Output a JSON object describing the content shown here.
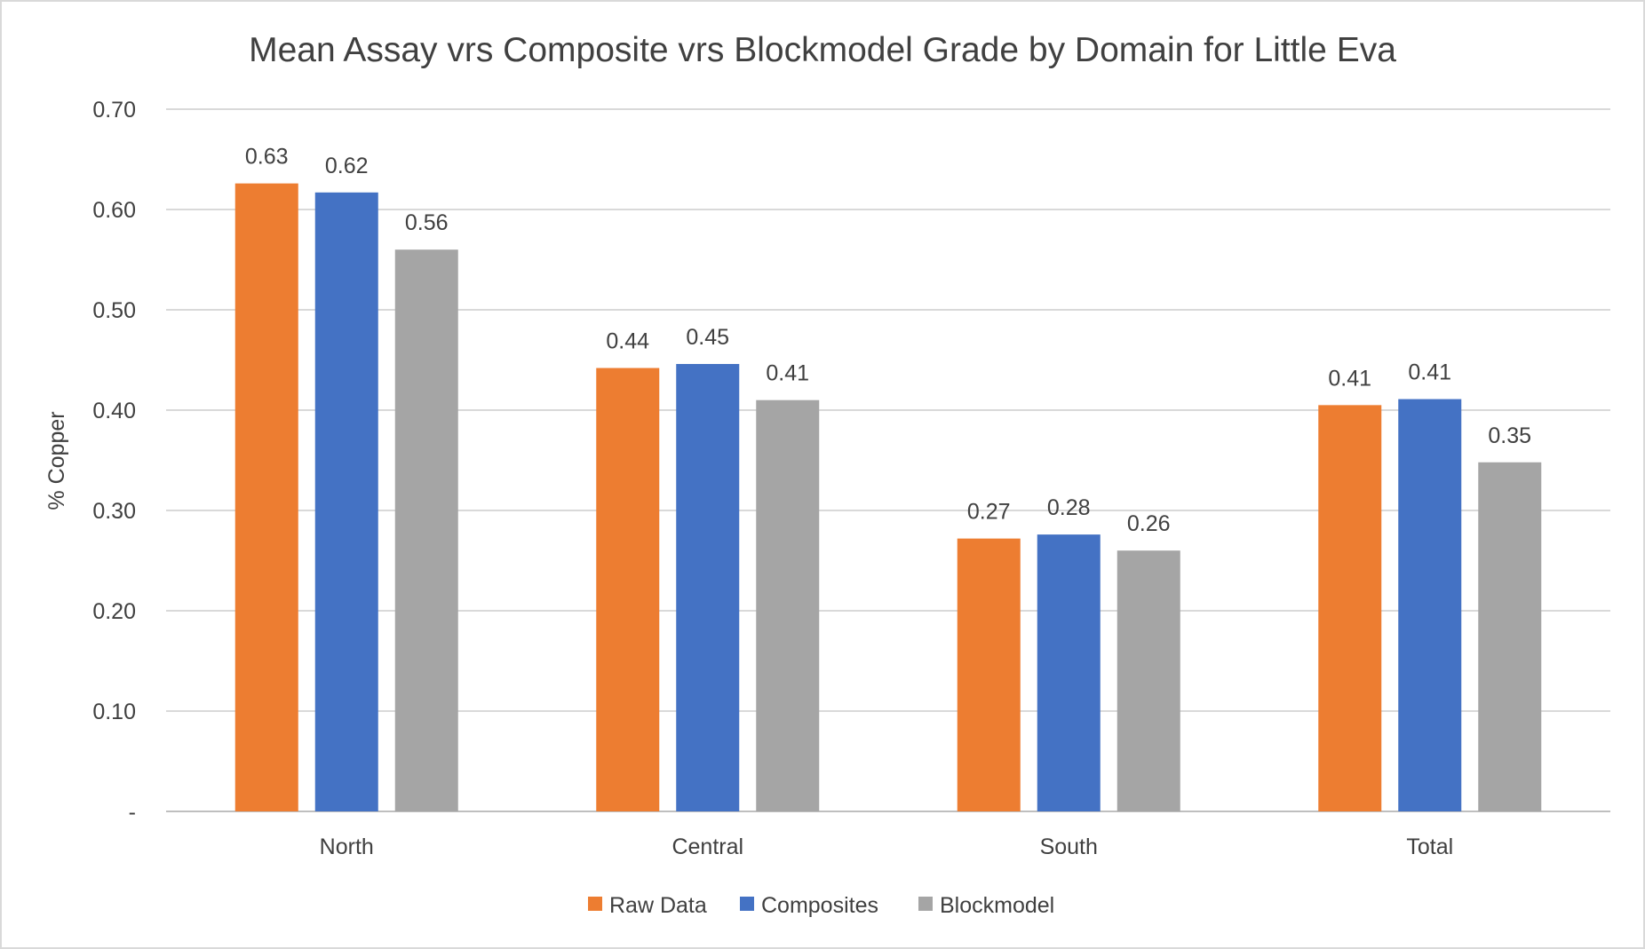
{
  "chart_data": {
    "type": "bar",
    "title": "Mean Assay vrs Composite vrs Blockmodel Grade by Domain for Little Eva",
    "xlabel": "",
    "ylabel": "% Copper",
    "ylim": [
      0,
      0.7
    ],
    "yticks": [
      0,
      0.1,
      0.2,
      0.3,
      0.4,
      0.5,
      0.6,
      0.7
    ],
    "ytick_labels": [
      "-",
      "0.10",
      "0.20",
      "0.30",
      "0.40",
      "0.50",
      "0.60",
      "0.70"
    ],
    "grid": true,
    "legend_position": "bottom",
    "categories": [
      "North",
      "Central",
      "South",
      "Total"
    ],
    "series": [
      {
        "name": "Raw Data",
        "color": "#ED7D31",
        "values": [
          0.626,
          0.442,
          0.272,
          0.405
        ],
        "labels": [
          "0.63",
          "0.44",
          "0.27",
          "0.41"
        ]
      },
      {
        "name": "Composites",
        "color": "#4472C4",
        "values": [
          0.617,
          0.446,
          0.276,
          0.411
        ],
        "labels": [
          "0.62",
          "0.45",
          "0.28",
          "0.41"
        ]
      },
      {
        "name": "Blockmodel",
        "color": "#A5A5A5",
        "values": [
          0.56,
          0.41,
          0.26,
          0.348
        ],
        "labels": [
          "0.56",
          "0.41",
          "0.26",
          "0.35"
        ]
      }
    ]
  }
}
